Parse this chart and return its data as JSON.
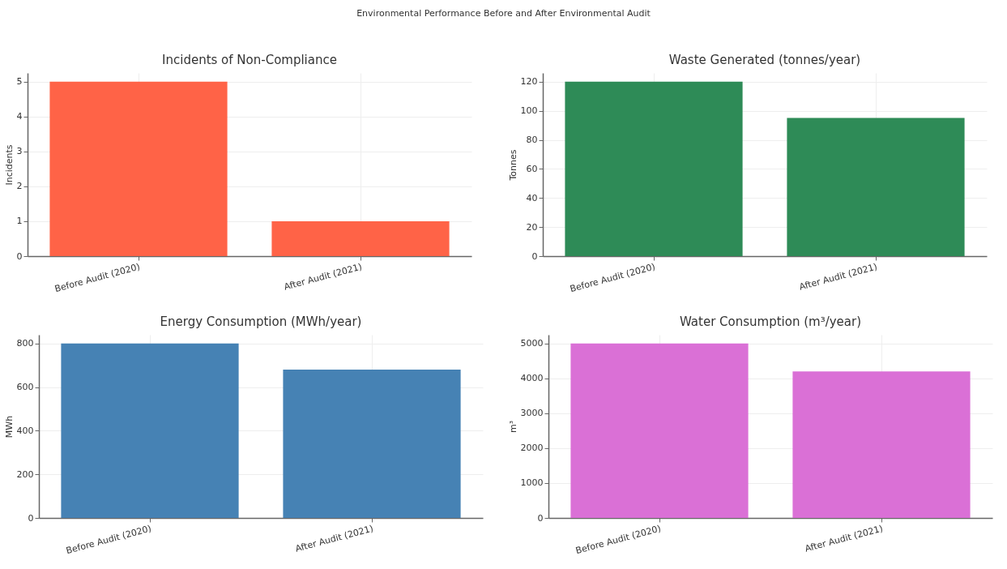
{
  "chart_data": [
    {
      "type": "bar",
      "title": "Incidents of Non-Compliance",
      "ylabel": "Incidents",
      "annotations": [
        "Environmental Performance Before and After Environmental Audit"
      ],
      "categories": [
        "Before Audit (2020)",
        "After Audit (2021)"
      ],
      "values": [
        5,
        1
      ],
      "color": "#ff6347",
      "ylim": [
        0,
        5.25
      ],
      "yticks": [
        0,
        1,
        2,
        3,
        4,
        5
      ],
      "grid": true
    },
    {
      "type": "bar",
      "title": "Waste Generated (tonnes/year)",
      "ylabel": "Tonnes",
      "categories": [
        "Before Audit (2020)",
        "After Audit (2021)"
      ],
      "values": [
        120,
        95
      ],
      "color": "#2e8b57",
      "ylim": [
        0,
        126
      ],
      "yticks": [
        0,
        20,
        40,
        60,
        80,
        100,
        120
      ],
      "grid": true
    },
    {
      "type": "bar",
      "title": "Energy Consumption (MWh/year)",
      "ylabel": "MWh",
      "categories": [
        "Before Audit (2020)",
        "After Audit (2021)"
      ],
      "values": [
        800,
        680
      ],
      "color": "#4682b4",
      "ylim": [
        0,
        840
      ],
      "yticks": [
        0,
        200,
        400,
        600,
        800
      ],
      "grid": true
    },
    {
      "type": "bar",
      "title": "Water Consumption (m³/year)",
      "ylabel": "m³",
      "categories": [
        "Before Audit (2020)",
        "After Audit (2021)"
      ],
      "values": [
        5000,
        4200
      ],
      "color": "#da70d6",
      "ylim": [
        0,
        5250
      ],
      "yticks": [
        0,
        1000,
        2000,
        3000,
        4000,
        5000
      ],
      "grid": true
    }
  ]
}
